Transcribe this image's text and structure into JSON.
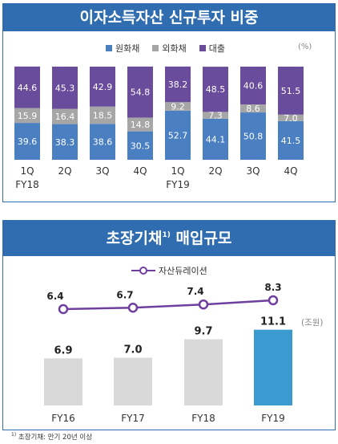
{
  "panel1": {
    "title": "이자소득자산 신규투자 비중",
    "unit": "(%)",
    "colors": {
      "won": "#4a7fc1",
      "foreign": "#a6a6a6",
      "loan": "#6a4c9c"
    },
    "chart_data": {
      "type": "bar",
      "stacked": true,
      "categories": [
        "1Q",
        "2Q",
        "3Q",
        "4Q",
        "1Q",
        "2Q",
        "3Q",
        "4Q"
      ],
      "year_labels": [
        "FY18",
        "FY19"
      ],
      "series": [
        {
          "name": "원화채",
          "values": [
            39.6,
            38.3,
            38.6,
            30.5,
            52.7,
            44.1,
            50.8,
            41.5
          ]
        },
        {
          "name": "외화채",
          "values": [
            15.9,
            16.4,
            18.5,
            14.8,
            9.2,
            7.3,
            8.6,
            7.0
          ]
        },
        {
          "name": "대출",
          "values": [
            44.6,
            45.3,
            42.9,
            54.8,
            38.2,
            48.5,
            40.6,
            51.5
          ]
        }
      ],
      "ylim": [
        0,
        100
      ]
    }
  },
  "panel2": {
    "title": "초장기채",
    "title_sup": "1)",
    "title_rest": " 매입규모",
    "unit": "(조원)",
    "colors": {
      "bar": "#d9d9d9",
      "bar_highlight": "#3a9bd0",
      "line": "#6f3fa0"
    },
    "chart_data": {
      "type": "bar",
      "categories": [
        "FY16",
        "FY17",
        "FY18",
        "FY19"
      ],
      "values": [
        6.9,
        7.0,
        9.7,
        11.1
      ],
      "line_series": {
        "name": "자산듀레이션",
        "values": [
          6.4,
          6.7,
          7.4,
          8.3
        ]
      }
    }
  },
  "footnote": {
    "sup": "1)",
    "text": " 초장기채: 만기 20년 이상"
  }
}
